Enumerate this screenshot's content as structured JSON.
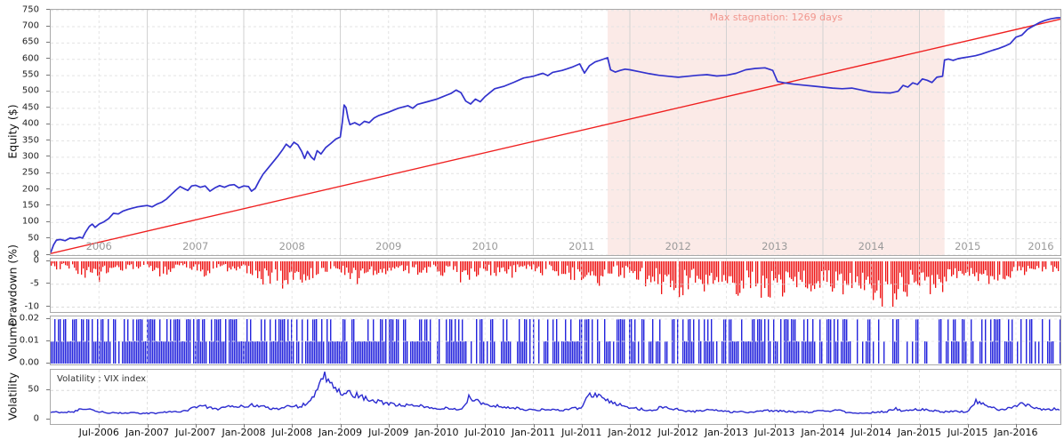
{
  "y_axis": {
    "equity": "Equity ($)",
    "drawdown": "Drawdown (%)",
    "volume": "Volume",
    "volatility": "Volatility"
  },
  "colors": {
    "equity_line": "#3232cd",
    "trend_line": "#ef2020",
    "drawdown_bar": "#ee1212",
    "volume_bar": "#2424dd",
    "vix_line": "#2b2bd0",
    "stagnation_fill": "#fbeae7",
    "stagnation_text": "#f1968e",
    "grid_solid": "#d2d2d2",
    "grid_dashed": "#e3e3e3",
    "panel_border": "#a9a9a9"
  },
  "x_axis": {
    "first_tick_year": 2006.5,
    "step_years": 0.5,
    "tick_labels": [
      "Jul-2006",
      "Jan-2007",
      "Jul-2007",
      "Jan-2008",
      "Jul-2008",
      "Jan-2009",
      "Jul-2009",
      "Jan-2010",
      "Jul-2010",
      "Jan-2011",
      "Jul-2011",
      "Jan-2012",
      "Jul-2012",
      "Jan-2013",
      "Jul-2013",
      "Jan-2014",
      "Jul-2014",
      "Jan-2015",
      "Jul-2015",
      "Jan-2016"
    ]
  },
  "chart_data": [
    {
      "type": "line",
      "name": "equity-curve",
      "ylabel": "Equity ($)",
      "ylim": [
        0,
        750
      ],
      "yticks": [
        0,
        50,
        100,
        150,
        200,
        250,
        300,
        350,
        400,
        450,
        500,
        550,
        600,
        650,
        700,
        750
      ],
      "xlim_years": [
        2006.0,
        2016.46
      ],
      "year_labels": [
        "2006",
        "2007",
        "2008",
        "2009",
        "2010",
        "2011",
        "2012",
        "2013",
        "2014",
        "2015",
        "2016"
      ],
      "annotations": [
        {
          "type": "stagnation-region",
          "label": "Max stagnation: 1269 days",
          "x_start": 2011.77,
          "x_end": 2015.26
        }
      ],
      "series": [
        {
          "name": "equity",
          "points": [
            [
              2006.0,
              8
            ],
            [
              2006.03,
              32
            ],
            [
              2006.06,
              46
            ],
            [
              2006.1,
              48
            ],
            [
              2006.15,
              44
            ],
            [
              2006.2,
              52
            ],
            [
              2006.25,
              50
            ],
            [
              2006.3,
              55
            ],
            [
              2006.33,
              52
            ],
            [
              2006.36,
              70
            ],
            [
              2006.4,
              88
            ],
            [
              2006.43,
              95
            ],
            [
              2006.46,
              85
            ],
            [
              2006.5,
              95
            ],
            [
              2006.55,
              102
            ],
            [
              2006.6,
              112
            ],
            [
              2006.65,
              128
            ],
            [
              2006.7,
              126
            ],
            [
              2006.75,
              135
            ],
            [
              2006.8,
              140
            ],
            [
              2006.85,
              144
            ],
            [
              2006.9,
              148
            ],
            [
              2006.95,
              150
            ],
            [
              2007.0,
              152
            ],
            [
              2007.05,
              148
            ],
            [
              2007.1,
              156
            ],
            [
              2007.15,
              162
            ],
            [
              2007.2,
              172
            ],
            [
              2007.25,
              186
            ],
            [
              2007.3,
              200
            ],
            [
              2007.34,
              210
            ],
            [
              2007.38,
              204
            ],
            [
              2007.42,
              198
            ],
            [
              2007.46,
              212
            ],
            [
              2007.5,
              214
            ],
            [
              2007.55,
              208
            ],
            [
              2007.6,
              212
            ],
            [
              2007.65,
              196
            ],
            [
              2007.7,
              206
            ],
            [
              2007.75,
              213
            ],
            [
              2007.8,
              208
            ],
            [
              2007.85,
              214
            ],
            [
              2007.9,
              216
            ],
            [
              2007.95,
              206
            ],
            [
              2008.0,
              212
            ],
            [
              2008.05,
              210
            ],
            [
              2008.08,
              196
            ],
            [
              2008.12,
              205
            ],
            [
              2008.16,
              228
            ],
            [
              2008.2,
              248
            ],
            [
              2008.25,
              266
            ],
            [
              2008.3,
              284
            ],
            [
              2008.35,
              302
            ],
            [
              2008.4,
              322
            ],
            [
              2008.44,
              340
            ],
            [
              2008.48,
              330
            ],
            [
              2008.52,
              346
            ],
            [
              2008.56,
              338
            ],
            [
              2008.6,
              318
            ],
            [
              2008.63,
              296
            ],
            [
              2008.66,
              318
            ],
            [
              2008.7,
              300
            ],
            [
              2008.73,
              292
            ],
            [
              2008.76,
              320
            ],
            [
              2008.8,
              310
            ],
            [
              2008.85,
              330
            ],
            [
              2008.9,
              342
            ],
            [
              2008.95,
              355
            ],
            [
              2009.0,
              362
            ],
            [
              2009.02,
              405
            ],
            [
              2009.04,
              460
            ],
            [
              2009.06,
              452
            ],
            [
              2009.08,
              420
            ],
            [
              2009.1,
              400
            ],
            [
              2009.15,
              406
            ],
            [
              2009.2,
              398
            ],
            [
              2009.25,
              410
            ],
            [
              2009.3,
              406
            ],
            [
              2009.35,
              420
            ],
            [
              2009.4,
              428
            ],
            [
              2009.5,
              438
            ],
            [
              2009.6,
              450
            ],
            [
              2009.7,
              458
            ],
            [
              2009.75,
              450
            ],
            [
              2009.8,
              462
            ],
            [
              2009.9,
              470
            ],
            [
              2010.0,
              478
            ],
            [
              2010.05,
              484
            ],
            [
              2010.1,
              490
            ],
            [
              2010.15,
              496
            ],
            [
              2010.2,
              506
            ],
            [
              2010.25,
              498
            ],
            [
              2010.3,
              472
            ],
            [
              2010.35,
              463
            ],
            [
              2010.4,
              478
            ],
            [
              2010.45,
              470
            ],
            [
              2010.5,
              486
            ],
            [
              2010.55,
              498
            ],
            [
              2010.6,
              510
            ],
            [
              2010.7,
              518
            ],
            [
              2010.8,
              530
            ],
            [
              2010.9,
              543
            ],
            [
              2011.0,
              548
            ],
            [
              2011.05,
              553
            ],
            [
              2011.1,
              557
            ],
            [
              2011.15,
              550
            ],
            [
              2011.2,
              560
            ],
            [
              2011.3,
              566
            ],
            [
              2011.4,
              576
            ],
            [
              2011.48,
              586
            ],
            [
              2011.53,
              558
            ],
            [
              2011.58,
              580
            ],
            [
              2011.64,
              592
            ],
            [
              2011.7,
              598
            ],
            [
              2011.74,
              602
            ],
            [
              2011.77,
              605
            ],
            [
              2011.8,
              568
            ],
            [
              2011.85,
              561
            ],
            [
              2011.9,
              566
            ],
            [
              2011.95,
              570
            ],
            [
              2012.0,
              568
            ],
            [
              2012.1,
              562
            ],
            [
              2012.2,
              556
            ],
            [
              2012.3,
              551
            ],
            [
              2012.4,
              548
            ],
            [
              2012.5,
              545
            ],
            [
              2012.6,
              548
            ],
            [
              2012.7,
              551
            ],
            [
              2012.8,
              553
            ],
            [
              2012.9,
              549
            ],
            [
              2013.0,
              551
            ],
            [
              2013.1,
              557
            ],
            [
              2013.2,
              568
            ],
            [
              2013.3,
              572
            ],
            [
              2013.4,
              574
            ],
            [
              2013.48,
              566
            ],
            [
              2013.53,
              532
            ],
            [
              2013.6,
              528
            ],
            [
              2013.7,
              524
            ],
            [
              2013.8,
              521
            ],
            [
              2013.9,
              518
            ],
            [
              2014.0,
              515
            ],
            [
              2014.1,
              512
            ],
            [
              2014.2,
              510
            ],
            [
              2014.3,
              512
            ],
            [
              2014.4,
              506
            ],
            [
              2014.5,
              500
            ],
            [
              2014.6,
              498
            ],
            [
              2014.7,
              497
            ],
            [
              2014.78,
              502
            ],
            [
              2014.83,
              520
            ],
            [
              2014.88,
              515
            ],
            [
              2014.93,
              528
            ],
            [
              2014.98,
              523
            ],
            [
              2015.03,
              540
            ],
            [
              2015.08,
              536
            ],
            [
              2015.13,
              529
            ],
            [
              2015.18,
              545
            ],
            [
              2015.24,
              548
            ],
            [
              2015.26,
              598
            ],
            [
              2015.3,
              601
            ],
            [
              2015.35,
              597
            ],
            [
              2015.4,
              602
            ],
            [
              2015.46,
              605
            ],
            [
              2015.52,
              608
            ],
            [
              2015.58,
              611
            ],
            [
              2015.64,
              616
            ],
            [
              2015.7,
              622
            ],
            [
              2015.76,
              628
            ],
            [
              2015.82,
              633
            ],
            [
              2015.88,
              640
            ],
            [
              2015.94,
              648
            ],
            [
              2016.0,
              668
            ],
            [
              2016.06,
              674
            ],
            [
              2016.12,
              692
            ],
            [
              2016.18,
              702
            ],
            [
              2016.24,
              712
            ],
            [
              2016.3,
              719
            ],
            [
              2016.36,
              724
            ],
            [
              2016.42,
              727
            ],
            [
              2016.46,
              728
            ]
          ]
        },
        {
          "name": "linear-benchmark",
          "points": [
            [
              2006.0,
              5
            ],
            [
              2016.46,
              723
            ]
          ]
        }
      ]
    },
    {
      "type": "bar",
      "name": "drawdown",
      "ylabel": "Drawdown (%)",
      "ylim": [
        -11.5,
        0.5
      ],
      "yticks": [
        0,
        -5,
        -10
      ],
      "x_start": 2006.0,
      "x_step_years": 0.08333,
      "values": [
        -1.0,
        -2.2,
        -1.2,
        -3.0,
        -4.6,
        -2.4,
        -4.8,
        -2.6,
        -1.4,
        -2.8,
        -1.6,
        -2.2,
        -1.6,
        -3.4,
        -4.4,
        -2.2,
        -1.2,
        -2.6,
        -1.8,
        -3.6,
        -2.2,
        -1.2,
        -2.6,
        -3.4,
        -2.2,
        -3.8,
        -6.4,
        -4.6,
        -6.8,
        -7.0,
        -5.2,
        -4.2,
        -6.6,
        -3.4,
        -2.6,
        -2.2,
        -2.4,
        -3.6,
        -5.4,
        -4.2,
        -3.2,
        -4.4,
        -2.6,
        -2.2,
        -3.2,
        -2.4,
        -3.4,
        -2.4,
        -2.6,
        -3.8,
        -3.0,
        -5.0,
        -4.6,
        -3.2,
        -2.4,
        -3.6,
        -2.6,
        -4.4,
        -2.2,
        -1.8,
        -2.2,
        -3.2,
        -2.6,
        -4.2,
        -3.4,
        -5.2,
        -4.6,
        -3.2,
        -5.6,
        -4.2,
        -3.2,
        -3.8,
        -3.2,
        -4.6,
        -6.2,
        -5.2,
        -7.6,
        -6.4,
        -8.0,
        -7.2,
        -6.2,
        -7.4,
        -5.4,
        -6.6,
        -5.6,
        -7.2,
        -8.4,
        -6.2,
        -7.6,
        -9.0,
        -6.6,
        -8.2,
        -7.0,
        -5.8,
        -6.2,
        -7.4,
        -6.2,
        -7.6,
        -9.2,
        -8.2,
        -9.8,
        -9.4,
        -8.6,
        -10.4,
        -9.2,
        -10.8,
        -8.2,
        -7.2,
        -6.6,
        -8.2,
        -5.8,
        -7.2,
        -4.8,
        -6.2,
        -5.2,
        -6.6,
        -4.2,
        -5.6,
        -3.6,
        -4.6,
        -2.2,
        -3.2,
        -1.8,
        -2.4
      ]
    },
    {
      "type": "bar",
      "name": "volume",
      "ylabel": "Volume",
      "ylim": [
        0,
        0.021
      ],
      "ytick_labels": [
        "0.00",
        "0.01",
        "0.02"
      ],
      "yticks": [
        0,
        0.01,
        0.02
      ],
      "bar_levels": [
        0.01,
        0.02
      ],
      "half_year_density_full_half": [
        [
          0.55,
          0.42
        ],
        [
          0.5,
          0.44
        ],
        [
          0.52,
          0.42
        ],
        [
          0.46,
          0.44
        ],
        [
          0.54,
          0.4
        ],
        [
          0.5,
          0.42
        ],
        [
          0.48,
          0.4
        ],
        [
          0.44,
          0.4
        ],
        [
          0.44,
          0.38
        ],
        [
          0.4,
          0.38
        ],
        [
          0.42,
          0.36
        ],
        [
          0.4,
          0.34
        ],
        [
          0.36,
          0.36
        ],
        [
          0.34,
          0.34
        ],
        [
          0.34,
          0.32
        ],
        [
          0.3,
          0.34
        ],
        [
          0.28,
          0.32
        ],
        [
          0.3,
          0.28
        ],
        [
          0.24,
          0.32
        ],
        [
          0.28,
          0.28
        ],
        [
          0.24,
          0.3
        ]
      ]
    },
    {
      "type": "line",
      "name": "volatility",
      "label": "Volatility : VIX index",
      "ylabel": "Volatility",
      "ylim": [
        0,
        85
      ],
      "yticks": [
        0,
        50
      ],
      "x_start": 2006.0,
      "x_step_years": 0.08333,
      "values": [
        13,
        12,
        13,
        14,
        19,
        16,
        13,
        12,
        12,
        11,
        11,
        11,
        11,
        11,
        12,
        13,
        14,
        16,
        21,
        24,
        19,
        18,
        23,
        21,
        23,
        25,
        24,
        20,
        18,
        21,
        24,
        22,
        30,
        48,
        78,
        60,
        48,
        45,
        42,
        37,
        33,
        30,
        27,
        25,
        25,
        23,
        23,
        22,
        20,
        20,
        18,
        17,
        38,
        32,
        26,
        24,
        23,
        20,
        19,
        17,
        17,
        17,
        18,
        16,
        17,
        19,
        20,
        44,
        42,
        34,
        29,
        24,
        21,
        19,
        16,
        17,
        22,
        19,
        17,
        15,
        14,
        16,
        17,
        16,
        14,
        13,
        13,
        13,
        14,
        16,
        14,
        15,
        14,
        13,
        13,
        14,
        14,
        15,
        15,
        13,
        12,
        11,
        12,
        13,
        14,
        19,
        14,
        16,
        18,
        16,
        15,
        13,
        14,
        14,
        13,
        32,
        27,
        21,
        17,
        19,
        25,
        27,
        21,
        18
      ]
    }
  ]
}
